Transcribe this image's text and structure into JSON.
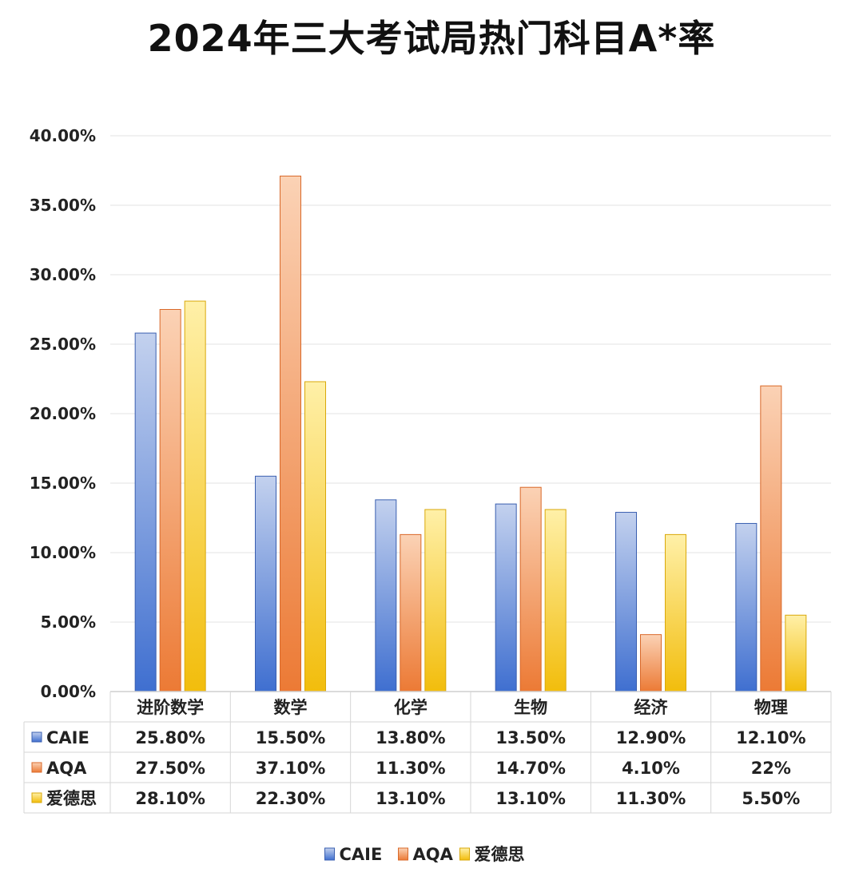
{
  "chart_data": {
    "type": "bar",
    "title": "2024年三大考试局热门科目A*率",
    "categories": [
      "进阶数学",
      "数学",
      "化学",
      "生物",
      "经济",
      "物理"
    ],
    "series": [
      {
        "name": "CAIE",
        "values": [
          25.8,
          15.5,
          13.8,
          13.5,
          12.9,
          12.1
        ],
        "labels": [
          "25.80%",
          "15.50%",
          "13.80%",
          "13.50%",
          "12.90%",
          "12.10%"
        ]
      },
      {
        "name": "AQA",
        "values": [
          27.5,
          37.1,
          11.3,
          14.7,
          4.1,
          22
        ],
        "labels": [
          "27.50%",
          "37.10%",
          "11.30%",
          "14.70%",
          "4.10%",
          "22%"
        ]
      },
      {
        "name": "爱德思",
        "values": [
          28.1,
          22.3,
          13.1,
          13.1,
          11.3,
          5.5
        ],
        "labels": [
          "28.10%",
          "22.30%",
          "13.10%",
          "13.10%",
          "11.30%",
          "5.50%"
        ]
      }
    ],
    "ylim": [
      0,
      40
    ],
    "yticks": [
      "0.00%",
      "5.00%",
      "10.00%",
      "15.00%",
      "20.00%",
      "25.00%",
      "30.00%",
      "35.00%",
      "40.00%"
    ],
    "grid": true,
    "legend": "bottom-center",
    "data_table": true
  },
  "colors": {
    "CAIE": {
      "top": "#c3d1ee",
      "bottom": "#3f6fd0",
      "stroke": "#3a5fb0"
    },
    "AQA": {
      "top": "#fbd2b5",
      "bottom": "#ec7a35",
      "stroke": "#d9692a"
    },
    "爱德思": {
      "top": "#fff0a8",
      "bottom": "#f2bd0c",
      "stroke": "#d9a80a"
    }
  }
}
